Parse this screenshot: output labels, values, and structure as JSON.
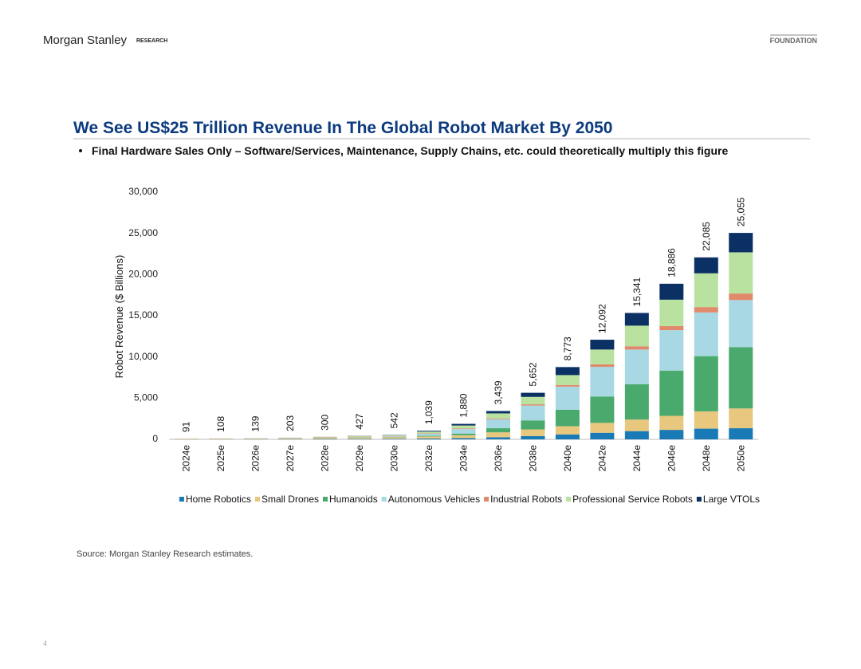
{
  "header": {
    "brand": "Morgan Stanley",
    "division": "RESEARCH",
    "series_name": "FOUNDATION"
  },
  "slide": {
    "title": "We See US$25 Trillion Revenue In The Global Robot Market By 2050",
    "bullet": "Final Hardware Sales Only – Software/Services, Maintenance, Supply Chains, etc. could theoretically multiply this figure",
    "source": "Source: Morgan Stanley Research estimates.",
    "page_number": "4"
  },
  "chart_data": {
    "type": "stacked_bar",
    "ylabel": "Robot Revenue ($ Billions)",
    "categories": [
      "2024e",
      "2025e",
      "2026e",
      "2027e",
      "2028e",
      "2029e",
      "2030e",
      "2032e",
      "2034e",
      "2036e",
      "2038e",
      "2040e",
      "2042e",
      "2044e",
      "2046e",
      "2048e",
      "2050e"
    ],
    "ylim": [
      0,
      30000
    ],
    "yticks": [
      0,
      {
        "value": 5000,
        "label": "5,000"
      },
      {
        "value": 10000,
        "label": "10,000"
      },
      {
        "value": 15000,
        "label": "15,000"
      },
      {
        "value": 20000,
        "label": "20,000"
      },
      {
        "value": 25000,
        "label": "25,000"
      },
      {
        "value": 30000,
        "label": "30,000"
      }
    ],
    "legend": "bottom",
    "series": [
      {
        "name": "Home Robotics",
        "color": "#1a7ab5",
        "values": [
          20,
          25,
          30,
          40,
          50,
          60,
          70,
          100,
          150,
          250,
          400,
          600,
          800,
          1000,
          1150,
          1300,
          1350
        ]
      },
      {
        "name": "Small Drones",
        "color": "#e8c77e",
        "values": [
          35,
          40,
          50,
          80,
          120,
          160,
          180,
          250,
          350,
          600,
          800,
          1000,
          1200,
          1400,
          1700,
          2100,
          2400
        ]
      },
      {
        "name": "Humanoids",
        "color": "#4aa96c",
        "values": [
          1,
          2,
          3,
          5,
          10,
          20,
          30,
          80,
          200,
          500,
          1100,
          2000,
          3200,
          4300,
          5500,
          6700,
          7450
        ]
      },
      {
        "name": "Autonomous Vehicles",
        "color": "#a8d8e3",
        "values": [
          2,
          3,
          5,
          10,
          20,
          40,
          80,
          250,
          550,
          1100,
          1800,
          2800,
          3600,
          4200,
          4900,
          5300,
          5700
        ]
      },
      {
        "name": "Industrial Robots",
        "color": "#e08a6b",
        "values": [
          22,
          25,
          30,
          35,
          40,
          45,
          50,
          60,
          80,
          100,
          150,
          200,
          300,
          400,
          500,
          650,
          800
        ]
      },
      {
        "name": "Professional Service Robots",
        "color": "#b9e2a0",
        "values": [
          10,
          12,
          20,
          30,
          50,
          80,
          100,
          200,
          350,
          600,
          900,
          1200,
          1800,
          2500,
          3200,
          4100,
          5000
        ]
      },
      {
        "name": "Large VTOLs",
        "color": "#0b3064",
        "values": [
          1,
          1,
          1,
          3,
          10,
          22,
          32,
          99,
          200,
          289,
          502,
          973,
          1192,
          1541,
          1936,
          1935,
          2355
        ]
      }
    ],
    "totals": {
      "values": [
        91,
        108,
        139,
        203,
        300,
        427,
        542,
        1039,
        1880,
        3439,
        5652,
        8773,
        12092,
        15341,
        18886,
        22085,
        25055
      ],
      "value_labels": [
        "91",
        "108",
        "139",
        "203",
        "300",
        "427",
        "542",
        "1,039",
        "1,880",
        "3,439",
        "5,652",
        "8,773",
        "12,092",
        "15,341",
        "18,886",
        "22,085",
        "25,055"
      ]
    }
  }
}
